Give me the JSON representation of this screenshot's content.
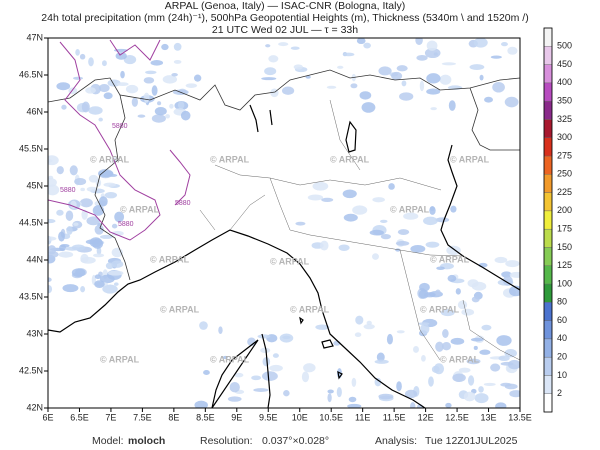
{
  "header": {
    "line1": "ARPAL (Genoa, Italy)  —  ISAC-CNR (Bologna, Italy)",
    "line2": "24h total precipitation (mm (24h)⁻¹), 500hPa Geopotential Heights (m), Thickness (5340m \\ and 1520m /)",
    "line3": "21 UTC Wed 02 JUL  —  τ = 33h"
  },
  "map": {
    "lon_labels": [
      "6E",
      "6.5E",
      "7E",
      "7.5E",
      "8E",
      "8.5E",
      "9E",
      "9.5E",
      "10E",
      "10.5E",
      "11E",
      "11.5E",
      "12E",
      "12.5E",
      "13E",
      "13.5E"
    ],
    "lat_labels": [
      "42N",
      "42.5N",
      "43N",
      "43.5N",
      "44N",
      "44.5N",
      "45N",
      "45.5N",
      "46N",
      "46.5N",
      "47N"
    ],
    "contour_label": "5880",
    "watermark": "© ARPAL"
  },
  "colorbar": {
    "labels": [
      "2",
      "10",
      "20",
      "40",
      "60",
      "80",
      "100",
      "125",
      "150",
      "175",
      "200",
      "225",
      "250",
      "275",
      "300",
      "325",
      "350",
      "400",
      "450",
      "500"
    ],
    "colors": [
      "#ffffff",
      "#dbe6f7",
      "#b9cdef",
      "#93b1e6",
      "#6f93dc",
      "#4b73cf",
      "#2e9a3a",
      "#55b84a",
      "#86cc55",
      "#bcdc4c",
      "#f0ee3c",
      "#f4c432",
      "#f29a2a",
      "#ec6422",
      "#d8301c",
      "#a8182e",
      "#8a2a8a",
      "#b84cc0",
      "#d890dc",
      "#e8c8ea",
      "#f4f4f4"
    ]
  },
  "footer": {
    "model_label": "Model:",
    "model": "moloch",
    "resolution_label": "Resolution:",
    "resolution": "0.037°×0.028°",
    "analysis_label": "Analysis:",
    "analysis": "Tue 12Z01JUL2025"
  }
}
